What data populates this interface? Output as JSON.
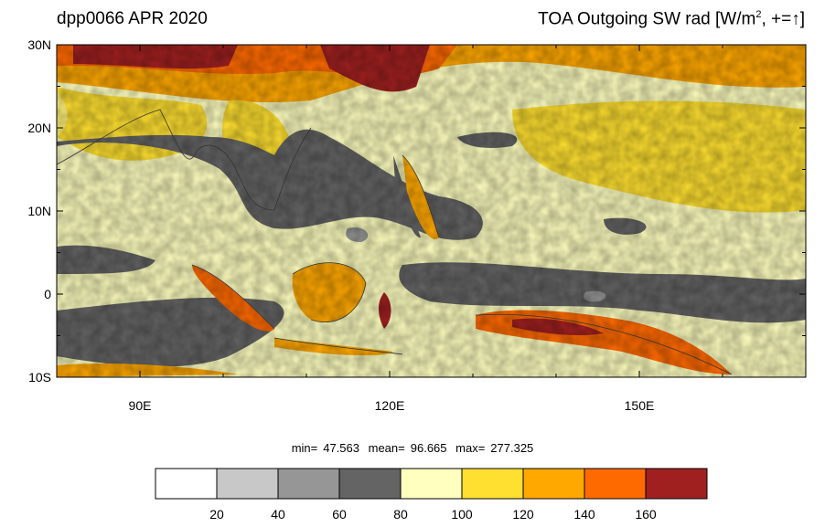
{
  "header": {
    "left_title": "dpp0066 APR 2020",
    "right_title": "TOA Outgoing SW rad [W/m², +=↑]"
  },
  "map": {
    "lat_labels": [
      "30N",
      "20N",
      "10N",
      "0",
      "10S"
    ],
    "lon_labels": [
      "90E",
      "120E",
      "150E"
    ],
    "lon_range": [
      80,
      170
    ],
    "lat_range": [
      -10,
      30
    ],
    "lat_ticks": [
      30,
      20,
      10,
      0,
      -10
    ],
    "lon_ticks": [
      90,
      120,
      150
    ]
  },
  "stats": {
    "min_label": "min=",
    "min_value": "47.563",
    "mean_label": "mean=",
    "mean_value": "96.665",
    "max_label": "max=",
    "max_value": "277.325"
  },
  "colorbar": {
    "labels": [
      "20",
      "40",
      "60",
      "80",
      "100",
      "120",
      "140",
      "160"
    ],
    "colors": [
      "#ffffff",
      "#c8c8c8",
      "#969696",
      "#646464",
      "#ffffc0",
      "#ffe030",
      "#ffa800",
      "#ff6a00",
      "#a02020"
    ]
  }
}
